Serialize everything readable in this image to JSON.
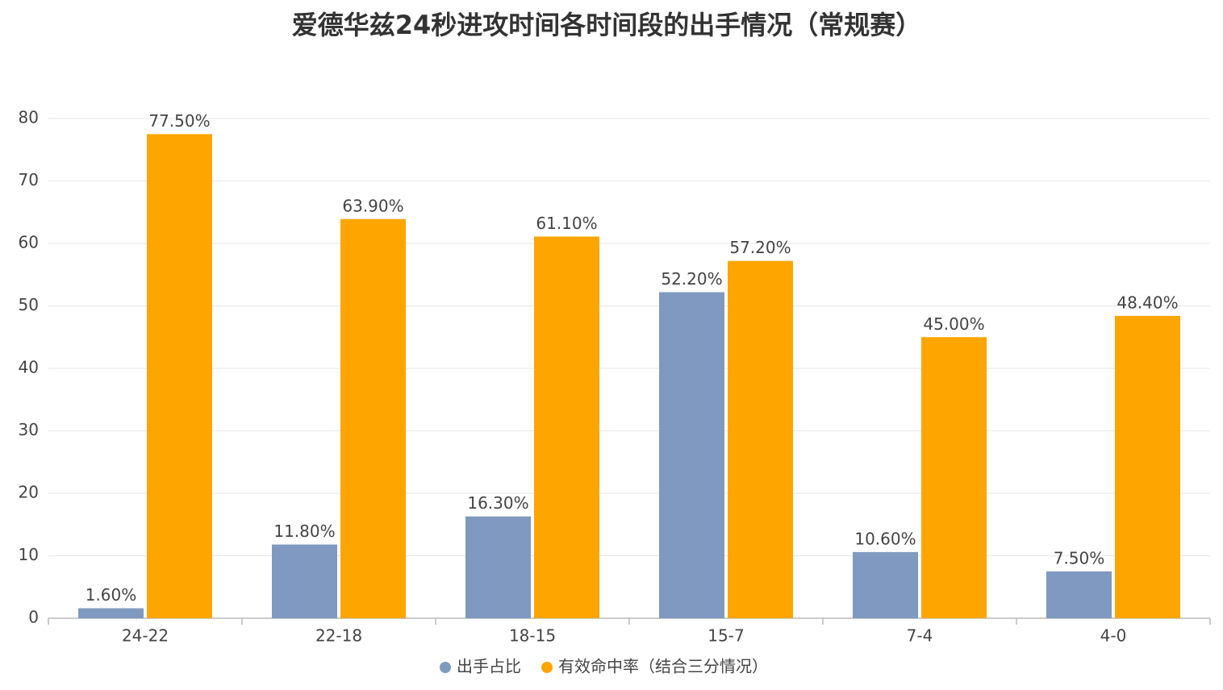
{
  "chart_data": {
    "type": "bar",
    "title": "爱德华兹24秒进攻时间各时间段的出手情况（常规赛）",
    "categories": [
      "24-22",
      "22-18",
      "18-15",
      "15-7",
      "7-4",
      "4-0"
    ],
    "series": [
      {
        "name": "出手占比",
        "color": "#7f99c0",
        "values": [
          1.6,
          11.8,
          16.3,
          52.2,
          10.6,
          7.5
        ],
        "value_labels": [
          "1.60%",
          "11.80%",
          "16.30%",
          "52.20%",
          "10.60%",
          "7.50%"
        ]
      },
      {
        "name": "有效命中率（结合三分情况）",
        "color": "#ffa500",
        "values": [
          77.5,
          63.9,
          61.1,
          57.2,
          45.0,
          48.4
        ],
        "value_labels": [
          "77.50%",
          "63.90%",
          "61.10%",
          "57.20%",
          "45.00%",
          "48.40%"
        ]
      }
    ],
    "ylim": [
      0,
      80
    ],
    "yticks": [
      0,
      10,
      20,
      30,
      40,
      50,
      60,
      70,
      80
    ],
    "grid": true,
    "legend": "bottom"
  }
}
